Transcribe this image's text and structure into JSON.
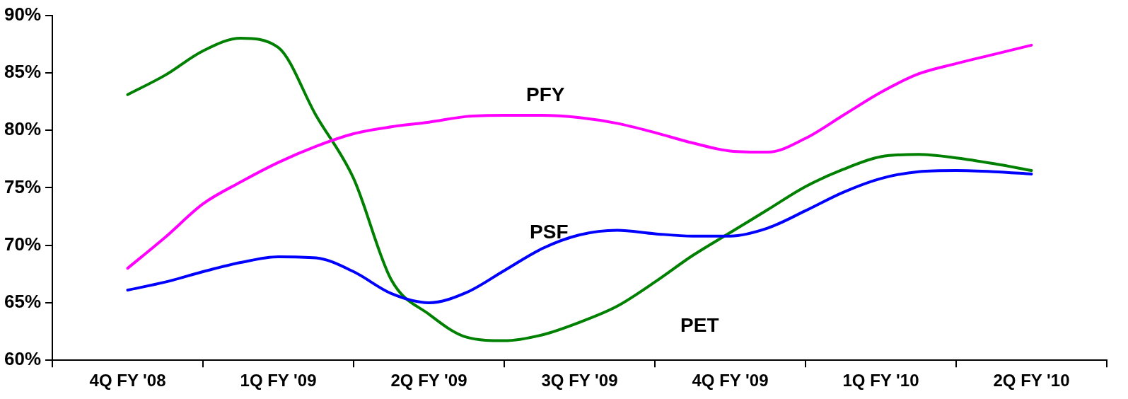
{
  "chart_data": {
    "type": "line",
    "categories": [
      null,
      null,
      "4Q FY '08",
      null,
      null,
      null,
      "1Q FY '09",
      null,
      null,
      null,
      "2Q FY '09",
      null,
      null,
      null,
      "3Q FY '09",
      null,
      null,
      null,
      "4Q FY '09",
      null,
      null,
      null,
      "1Q FY '10",
      null,
      null,
      null,
      "2Q FY '10",
      null,
      null
    ],
    "series": [
      {
        "name": "PFY",
        "color": "#ff00ff",
        "values": [
          null,
          null,
          68.0,
          70.7,
          73.6,
          75.5,
          77.2,
          78.6,
          79.7,
          80.3,
          80.7,
          81.2,
          81.3,
          81.3,
          81.1,
          80.6,
          79.8,
          78.9,
          78.2,
          78.1,
          79.3,
          81.3,
          83.3,
          84.9,
          85.8,
          86.6,
          87.4,
          null,
          null
        ]
      },
      {
        "name": "PSF",
        "color": "#0000ff",
        "values": [
          null,
          null,
          66.1,
          66.8,
          67.7,
          68.5,
          69.0,
          68.9,
          67.7,
          65.8,
          65.0,
          65.9,
          67.8,
          69.7,
          70.9,
          71.3,
          71.0,
          70.8,
          70.8,
          71.5,
          73.0,
          74.6,
          75.8,
          76.4,
          76.5,
          76.4,
          76.2,
          null,
          null
        ]
      },
      {
        "name": "PET",
        "color": "#008000",
        "values": [
          null,
          null,
          83.1,
          84.8,
          86.9,
          88.0,
          87.2,
          81.3,
          75.8,
          67.0,
          64.0,
          62.0,
          61.7,
          62.2,
          63.3,
          64.7,
          66.8,
          69.1,
          71.1,
          73.1,
          75.1,
          76.6,
          77.7,
          77.9,
          77.6,
          77.1,
          76.5,
          null,
          null
        ]
      }
    ],
    "ylim": [
      60,
      90
    ],
    "yticks": [
      {
        "value": 60,
        "label": "60%"
      },
      {
        "value": 65,
        "label": "65%"
      },
      {
        "value": 70,
        "label": "70%"
      },
      {
        "value": 75,
        "label": "75%"
      },
      {
        "value": 80,
        "label": "80%"
      },
      {
        "value": 85,
        "label": "85%"
      },
      {
        "value": 90,
        "label": "90%"
      }
    ],
    "grid": false,
    "legend": false,
    "marker": "none",
    "line_style": "solid"
  }
}
